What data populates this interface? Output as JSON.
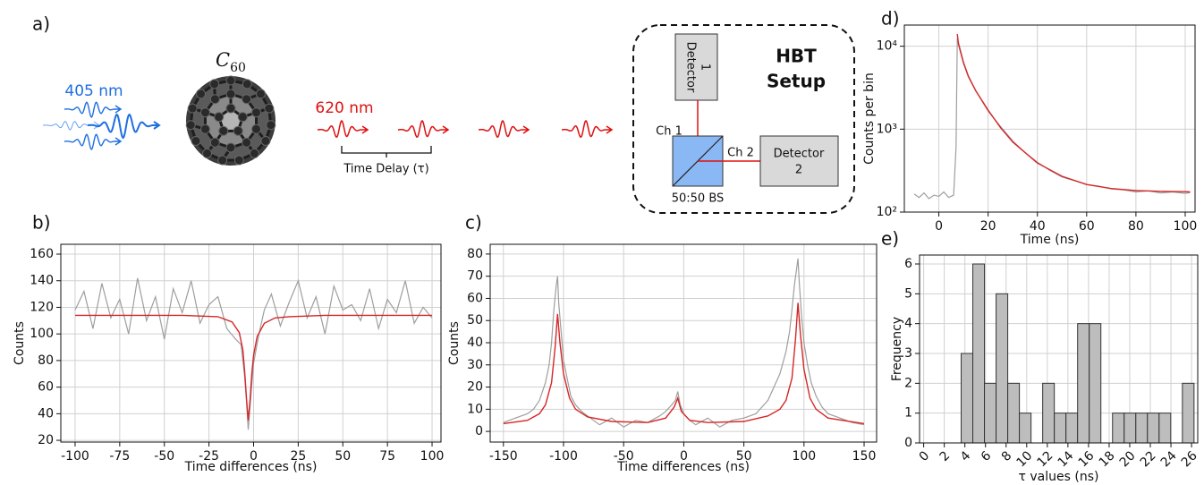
{
  "diagram": {
    "panel_label": "a)",
    "excitation_label": "405 nm",
    "molecule": {
      "base": "C",
      "subscript": "60"
    },
    "emission_label": "620 nm",
    "delay_label": "Time Delay (τ)",
    "setup_title": [
      "HBT",
      "Setup"
    ],
    "detector_1": [
      "Detector",
      "1"
    ],
    "detector_2": [
      "Detector",
      "2"
    ],
    "channel_1": "Ch 1",
    "channel_2": "Ch 2",
    "beam_splitter": "50:50 BS"
  },
  "chart_data": [
    {
      "type": "line",
      "panel_label": "b)",
      "xlabel": "Time differences (ns)",
      "ylabel": "Counts",
      "xlim": [
        -108,
        105
      ],
      "ylim": [
        18.7,
        167.4
      ],
      "xticks": [
        -100,
        -75,
        -50,
        -25,
        0,
        25,
        50,
        75,
        100
      ],
      "yticks": [
        20,
        40,
        60,
        80,
        100,
        120,
        140,
        160
      ],
      "grid": true,
      "series": [
        {
          "color": "#9e9e9e",
          "x": [
            -100,
            -95,
            -90,
            -85,
            -80,
            -75,
            -70,
            -65,
            -60,
            -55,
            -50,
            -45,
            -40,
            -35,
            -30,
            -25,
            -20,
            -15,
            -10,
            -7,
            -5,
            -4,
            -3,
            -2,
            -1,
            0,
            3,
            6,
            10,
            15,
            20,
            25,
            30,
            35,
            40,
            45,
            50,
            55,
            60,
            65,
            70,
            75,
            80,
            85,
            90,
            95,
            100
          ],
          "values": [
            118,
            132,
            104,
            138,
            112,
            126,
            100,
            142,
            110,
            128,
            96,
            134,
            116,
            140,
            108,
            122,
            128,
            104,
            96,
            92,
            68,
            50,
            28,
            45,
            62,
            78,
            100,
            118,
            130,
            106,
            124,
            140,
            112,
            128,
            100,
            136,
            118,
            122,
            110,
            134,
            104,
            126,
            116,
            140,
            108,
            120,
            112
          ]
        },
        {
          "color": "#d62728",
          "x": [
            -100,
            -40,
            -20,
            -12,
            -8,
            -6,
            -5,
            -4,
            -3,
            -2,
            -1,
            0,
            2,
            6,
            12,
            20,
            40,
            100
          ],
          "values": [
            114,
            114,
            113,
            109,
            101,
            88,
            72,
            52,
            35,
            50,
            70,
            84,
            98,
            108,
            112,
            113,
            114,
            114
          ]
        }
      ]
    },
    {
      "type": "line",
      "panel_label": "c)",
      "xlabel": "Time differences (ns)",
      "ylabel": "Counts",
      "xlim": [
        -161,
        160.4
      ],
      "ylim": [
        -4.8,
        84.4
      ],
      "xticks": [
        -150,
        -100,
        -50,
        0,
        50,
        100,
        150
      ],
      "yticks": [
        0,
        10,
        20,
        30,
        40,
        50,
        60,
        70,
        80
      ],
      "grid": true,
      "series": [
        {
          "color": "#9e9e9e",
          "x": [
            -150,
            -140,
            -130,
            -125,
            -120,
            -115,
            -112,
            -110,
            -108,
            -106,
            -105,
            -104,
            -102,
            -100,
            -97,
            -94,
            -90,
            -85,
            -80,
            -70,
            -60,
            -50,
            -40,
            -30,
            -20,
            -15,
            -10,
            -7,
            -5,
            -3,
            0,
            5,
            10,
            20,
            30,
            40,
            50,
            60,
            65,
            70,
            75,
            80,
            85,
            88,
            90,
            92,
            94,
            95,
            96,
            98,
            100,
            103,
            106,
            110,
            115,
            120,
            130,
            140,
            150
          ],
          "values": [
            4,
            6,
            8,
            10,
            14,
            22,
            30,
            40,
            55,
            66,
            70,
            58,
            45,
            32,
            24,
            16,
            12,
            9,
            7,
            3,
            6,
            2,
            5,
            4,
            7,
            9,
            12,
            14,
            18,
            12,
            8,
            5,
            3,
            6,
            2,
            5,
            6,
            8,
            11,
            14,
            20,
            26,
            36,
            45,
            55,
            66,
            74,
            78,
            68,
            52,
            40,
            30,
            22,
            16,
            11,
            8,
            6,
            4,
            3
          ]
        },
        {
          "color": "#d62728",
          "x": [
            -150,
            -130,
            -120,
            -115,
            -110,
            -107,
            -105,
            -103,
            -100,
            -95,
            -90,
            -80,
            -60,
            -30,
            -15,
            -8,
            -5,
            -2,
            5,
            20,
            50,
            70,
            80,
            85,
            90,
            93,
            95,
            97,
            100,
            105,
            110,
            120,
            150
          ],
          "values": [
            3.5,
            5,
            8,
            12,
            22,
            38,
            53,
            40,
            26,
            15,
            10,
            6.5,
            4.5,
            4,
            6,
            11,
            15,
            9,
            5,
            4,
            4.5,
            7,
            10,
            14,
            24,
            42,
            58,
            44,
            28,
            15,
            10,
            6,
            3.5
          ]
        }
      ]
    },
    {
      "type": "line",
      "panel_label": "d)",
      "xlabel": "Time (ns)",
      "ylabel": "Counts per bin",
      "yscale": "log",
      "xlim": [
        -14,
        104
      ],
      "ylim": [
        100,
        18000
      ],
      "xticks": [
        0,
        20,
        40,
        60,
        80,
        100
      ],
      "yticks": [
        {
          "value": 100,
          "label": "10²"
        },
        {
          "value": 1000,
          "label": "10³"
        },
        {
          "value": 10000,
          "label": "10⁴"
        }
      ],
      "grid": true,
      "series": [
        {
          "color": "#9e9e9e",
          "x": [
            -10,
            -8,
            -6,
            -4,
            -2,
            0,
            2,
            4,
            6,
            7,
            7.5,
            8,
            10,
            12,
            15,
            20,
            25,
            30,
            35,
            40,
            45,
            50,
            55,
            60,
            65,
            70,
            75,
            80,
            85,
            90,
            95,
            100,
            102
          ],
          "values": [
            165,
            150,
            170,
            145,
            160,
            155,
            175,
            150,
            160,
            600,
            12500,
            11000,
            6500,
            4400,
            2900,
            1650,
            1080,
            720,
            520,
            400,
            320,
            265,
            240,
            215,
            205,
            190,
            185,
            175,
            180,
            170,
            175,
            168,
            172
          ]
        },
        {
          "color": "#d62728",
          "x": [
            7.5,
            8,
            10,
            12,
            15,
            20,
            25,
            30,
            40,
            50,
            60,
            70,
            80,
            90,
            100,
            102
          ],
          "values": [
            14000,
            10500,
            6300,
            4300,
            2900,
            1700,
            1050,
            700,
            390,
            270,
            215,
            192,
            182,
            178,
            176,
            175
          ]
        }
      ]
    },
    {
      "type": "histogram",
      "panel_label": "e)",
      "xlabel": "τ values (ns)",
      "ylabel": "Frequency",
      "xlim": [
        -0.4,
        26.6
      ],
      "ylim": [
        0,
        6.3
      ],
      "xticks": [
        0,
        2,
        4,
        6,
        8,
        10,
        12,
        14,
        16,
        18,
        20,
        22,
        24,
        26
      ],
      "yticks": [
        0,
        1,
        2,
        3,
        4,
        5,
        6
      ],
      "grid": true,
      "color": "#bdbdbd",
      "edgecolor": "#333333",
      "bins": [
        3.64,
        4.77,
        5.9,
        7.03,
        8.16,
        9.29,
        10.42,
        11.55,
        12.68,
        13.81,
        14.94,
        16.07,
        17.2,
        18.33,
        19.46,
        20.59,
        21.72,
        22.85,
        23.98,
        25.11,
        26.24
      ],
      "values": [
        3,
        6,
        2,
        5,
        2,
        1,
        0,
        2,
        1,
        1,
        4,
        4,
        0,
        1,
        1,
        1,
        1,
        1,
        0,
        2
      ]
    }
  ]
}
